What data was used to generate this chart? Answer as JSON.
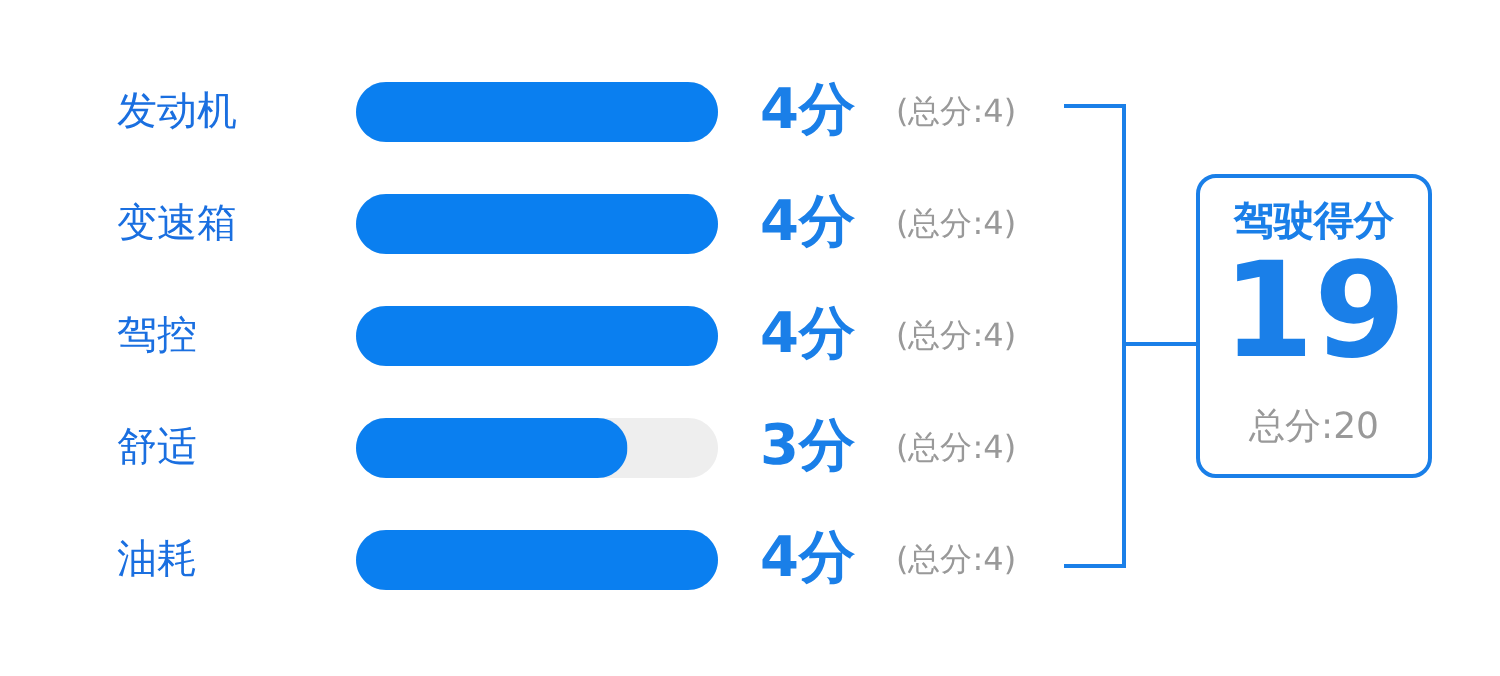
{
  "chart_data": {
    "type": "bar",
    "orientation": "horizontal",
    "categories": [
      "发动机",
      "变速箱",
      "驾控",
      "舒适",
      "油耗"
    ],
    "series": [
      {
        "color": "#0a7ff0",
        "values": [
          4,
          4,
          4,
          3,
          4
        ],
        "value_labels": [
          "4分",
          "4分",
          "4分",
          "3分",
          "4分"
        ]
      }
    ],
    "xlim": [
      0,
      4
    ],
    "tick_labels": "y",
    "annotations": [
      "(总分:4)",
      "(总分:4)",
      "(总分:4)",
      "(总分:4)",
      "(总分:4)",
      "驾驶得分",
      "19",
      "总分:20"
    ]
  }
}
